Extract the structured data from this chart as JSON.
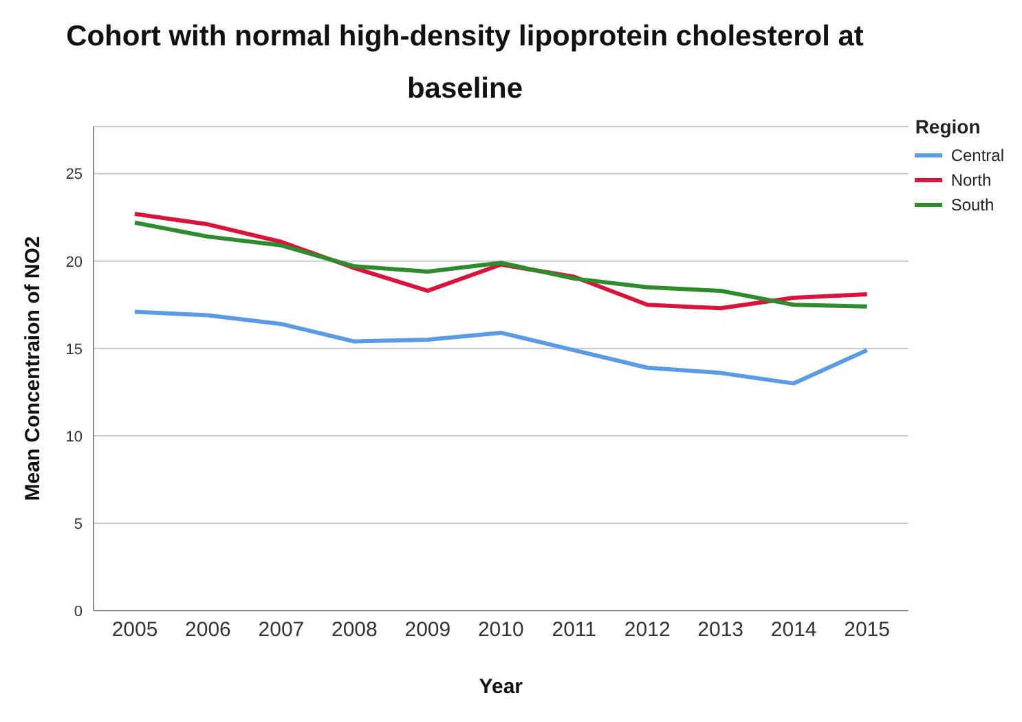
{
  "chart_data": {
    "type": "line",
    "title": "Cohort with normal high-density lipoprotein cholesterol at baseline",
    "xlabel": "Year",
    "ylabel": "Mean Concentraion of NO2",
    "legend_title": "Region",
    "categories": [
      "2005",
      "2006",
      "2007",
      "2008",
      "2009",
      "2010",
      "2011",
      "2012",
      "2013",
      "2014",
      "2015"
    ],
    "series": [
      {
        "name": "Central",
        "color": "#5b9be6",
        "values": [
          17.1,
          16.9,
          16.4,
          15.4,
          15.5,
          15.9,
          14.9,
          13.9,
          13.6,
          13.0,
          14.9
        ]
      },
      {
        "name": "North",
        "color": "#d9143c",
        "values": [
          22.7,
          22.1,
          21.1,
          19.6,
          18.3,
          19.8,
          19.1,
          17.5,
          17.3,
          17.9,
          18.1
        ]
      },
      {
        "name": "South",
        "color": "#2e8b2e",
        "values": [
          22.2,
          21.4,
          20.9,
          19.7,
          19.4,
          19.9,
          19.0,
          18.5,
          18.3,
          17.5,
          17.4
        ]
      }
    ],
    "ylim": [
      0,
      27.7
    ],
    "yticks": [
      0,
      5,
      10,
      15,
      20,
      25
    ],
    "grid": "y",
    "legend": "top right",
    "marker": "none",
    "line_style": "solid"
  }
}
